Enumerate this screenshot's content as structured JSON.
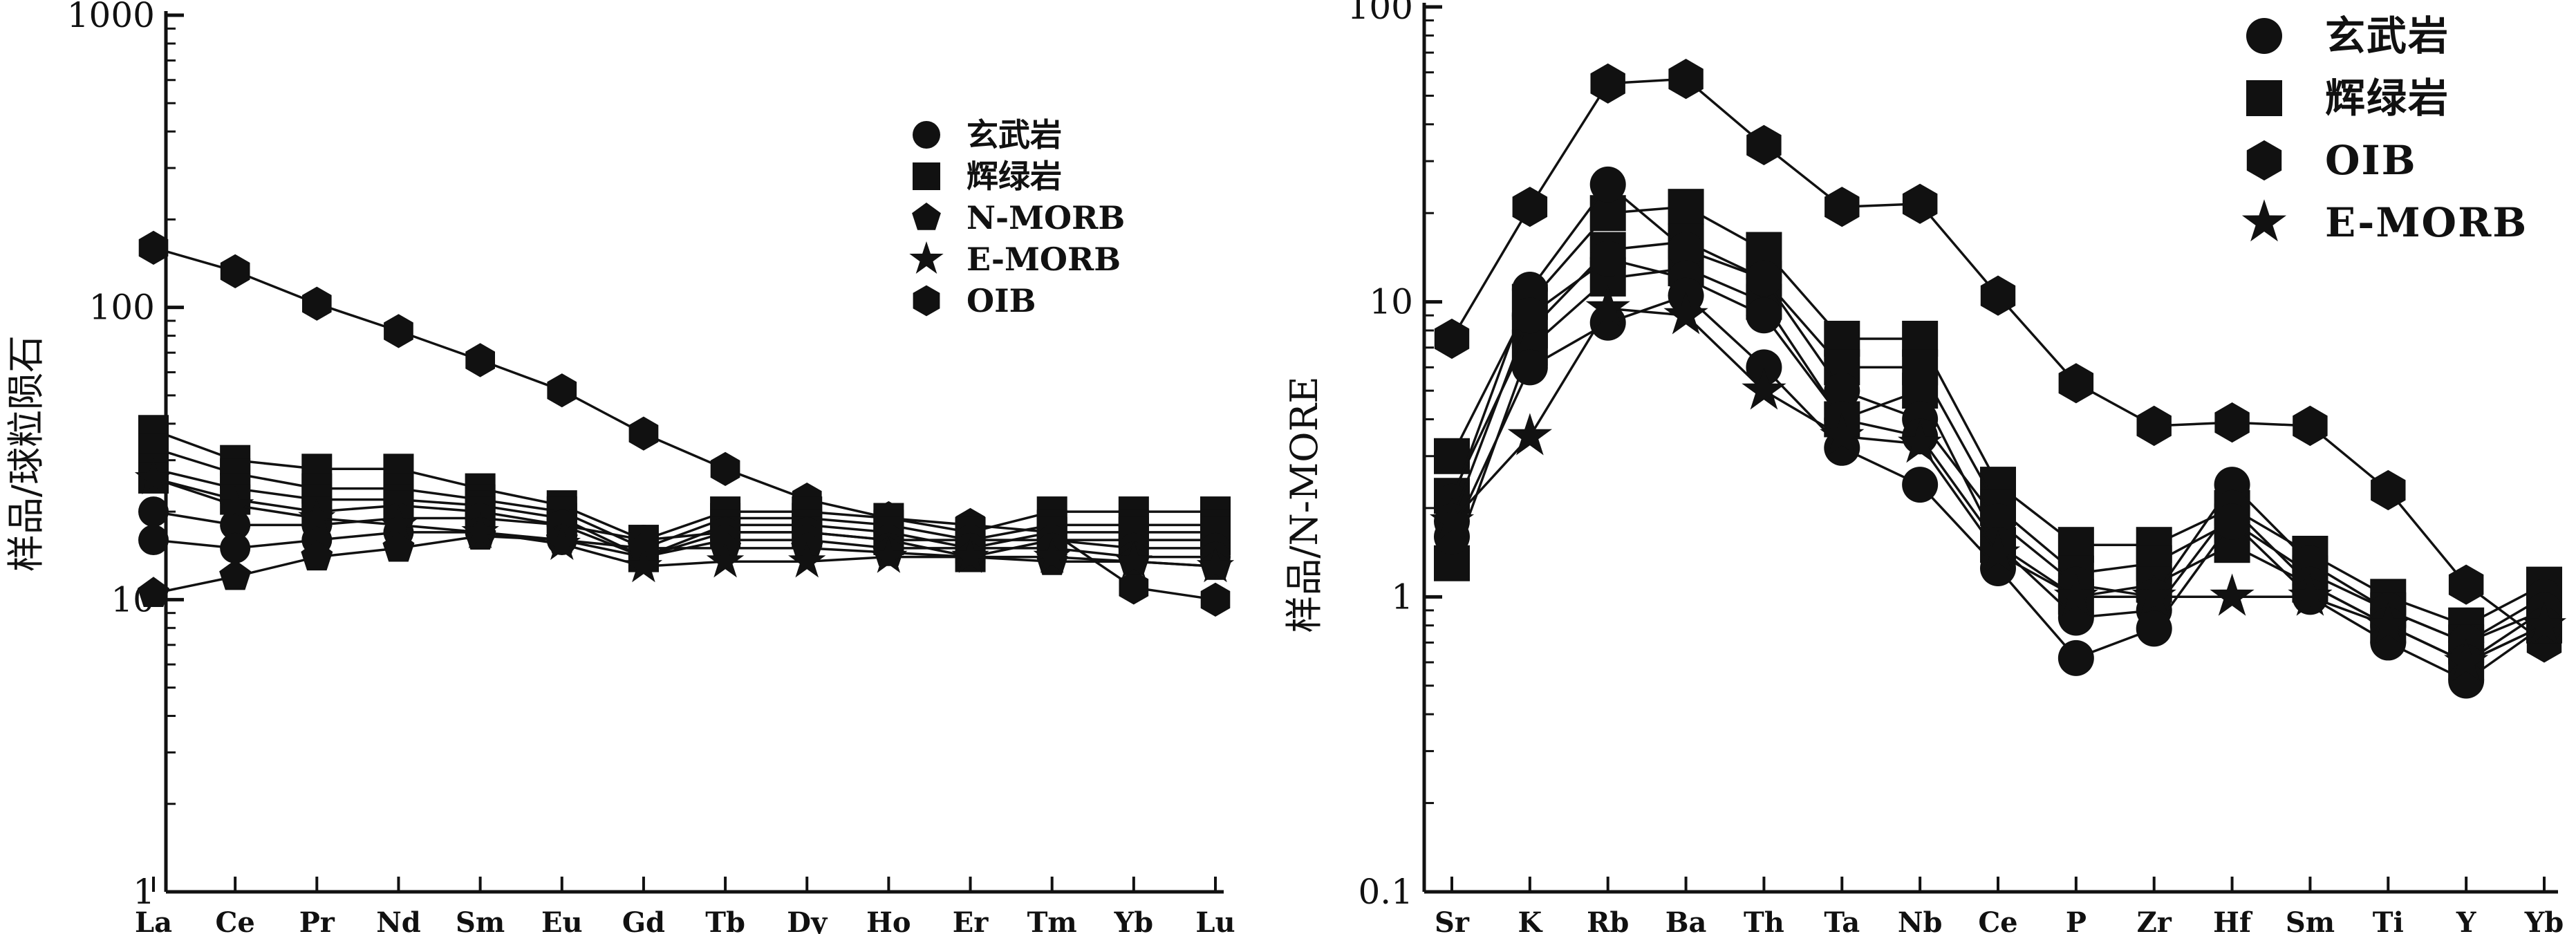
{
  "chart_data": [
    {
      "id": "ree",
      "type": "line",
      "scale": "log",
      "ylim": [
        1,
        1000
      ],
      "yticks": [
        1,
        10,
        100,
        1000
      ],
      "ylabel": "样品/球粒陨石",
      "xlabel": "",
      "categories": [
        "La",
        "Ce",
        "Pr",
        "Nd",
        "Sm",
        "Eu",
        "Gd",
        "Tb",
        "Dy",
        "Ho",
        "Er",
        "Tm",
        "Yb",
        "Lu"
      ],
      "legend": [
        {
          "label": "玄武岩",
          "marker": "circle"
        },
        {
          "label": "辉绿岩",
          "marker": "square"
        },
        {
          "label": "N-MORB",
          "marker": "pentagon"
        },
        {
          "label": "E-MORB",
          "marker": "star"
        },
        {
          "label": "OIB",
          "marker": "hexagon"
        }
      ],
      "series": [
        {
          "marker": "hexagon",
          "values": [
            160,
            133,
            103,
            83,
            66,
            52,
            37,
            28,
            22,
            19,
            18,
            17,
            11,
            10
          ]
        },
        {
          "marker": "square",
          "values": [
            38,
            30,
            28,
            28,
            24,
            21,
            16,
            20,
            20,
            19,
            17,
            20,
            20,
            20
          ]
        },
        {
          "marker": "square",
          "values": [
            33,
            27,
            24,
            24,
            22,
            20,
            15,
            19,
            19,
            18,
            16,
            18,
            18,
            18
          ]
        },
        {
          "marker": "square",
          "values": [
            28,
            24,
            22,
            22,
            21,
            19,
            14,
            18,
            18,
            17,
            15,
            17,
            17,
            17
          ]
        },
        {
          "marker": "square",
          "values": [
            26,
            22,
            20,
            21,
            20,
            18,
            14,
            17,
            17,
            16,
            14,
            16,
            16,
            16
          ]
        },
        {
          "marker": "circle",
          "values": [
            20,
            18,
            18,
            19,
            19,
            18,
            16,
            17,
            17,
            16,
            16,
            16,
            15,
            15
          ]
        },
        {
          "marker": "circle",
          "values": [
            16,
            15,
            16,
            17,
            17,
            16,
            14,
            16,
            16,
            15,
            15,
            15,
            14,
            14
          ]
        },
        {
          "marker": "pentagon",
          "values": [
            10.5,
            12,
            14,
            15,
            16.5,
            16,
            15,
            15,
            15,
            14.5,
            14,
            13.5,
            13.5,
            13
          ]
        },
        {
          "marker": "star",
          "values": [
            26,
            21,
            19,
            18,
            17,
            15.5,
            13,
            13.5,
            13.5,
            14,
            14,
            14,
            13.5,
            13
          ]
        }
      ]
    },
    {
      "id": "spider",
      "type": "line",
      "scale": "log",
      "ylim": [
        0.1,
        100
      ],
      "yticks": [
        0.1,
        1,
        10,
        100
      ],
      "ylabel": "样品/N-MORE",
      "xlabel": "",
      "categories": [
        "Sr",
        "K",
        "Rb",
        "Ba",
        "Th",
        "Ta",
        "Nb",
        "Ce",
        "P",
        "Zr",
        "Hf",
        "Sm",
        "Ti",
        "Y",
        "Yb"
      ],
      "legend": [
        {
          "label": "玄武岩",
          "marker": "circle"
        },
        {
          "label": "辉绿岩",
          "marker": "square"
        },
        {
          "label": "OIB",
          "marker": "hexagon"
        },
        {
          "label": "E-MORB",
          "marker": "star"
        }
      ],
      "series": [
        {
          "marker": "hexagon",
          "values": [
            7.5,
            21,
            55,
            57,
            34,
            21,
            21.5,
            10.5,
            5.3,
            3.8,
            3.9,
            3.8,
            2.3,
            1.1,
            0.7
          ]
        },
        {
          "marker": "square",
          "values": [
            3,
            10,
            20,
            21,
            15,
            7.5,
            7.5,
            2.4,
            1.5,
            1.5,
            2,
            1.4,
            1,
            0.8,
            1.1
          ]
        },
        {
          "marker": "square",
          "values": [
            2.2,
            8,
            15,
            16,
            12,
            6,
            6,
            2,
            1.2,
            1.3,
            1.8,
            1.2,
            0.9,
            0.7,
            0.9
          ]
        },
        {
          "marker": "square",
          "values": [
            1.3,
            7,
            12,
            13,
            10,
            4,
            5,
            1.5,
            1,
            1.1,
            1.5,
            1.1,
            0.8,
            0.6,
            0.8
          ]
        },
        {
          "marker": "circle",
          "values": [
            2.1,
            11,
            25,
            15,
            12,
            5,
            4,
            1.8,
            1.1,
            1,
            2.4,
            1.3,
            0.9,
            0.7,
            1
          ]
        },
        {
          "marker": "circle",
          "values": [
            1.8,
            9,
            14,
            12,
            9,
            4,
            3.5,
            1.5,
            0.85,
            0.9,
            2,
            1.1,
            0.8,
            0.6,
            0.9
          ]
        },
        {
          "marker": "circle",
          "values": [
            1.6,
            6,
            8.5,
            10.5,
            6,
            3.2,
            2.4,
            1.25,
            0.62,
            0.78,
            1.8,
            1,
            0.7,
            0.52,
            0.8
          ]
        },
        {
          "marker": "star",
          "values": [
            1.8,
            3.5,
            9.5,
            9,
            5,
            3.5,
            3.3,
            1.4,
            1,
            1,
            1,
            1,
            0.8,
            0.6,
            0.8
          ]
        }
      ]
    }
  ]
}
